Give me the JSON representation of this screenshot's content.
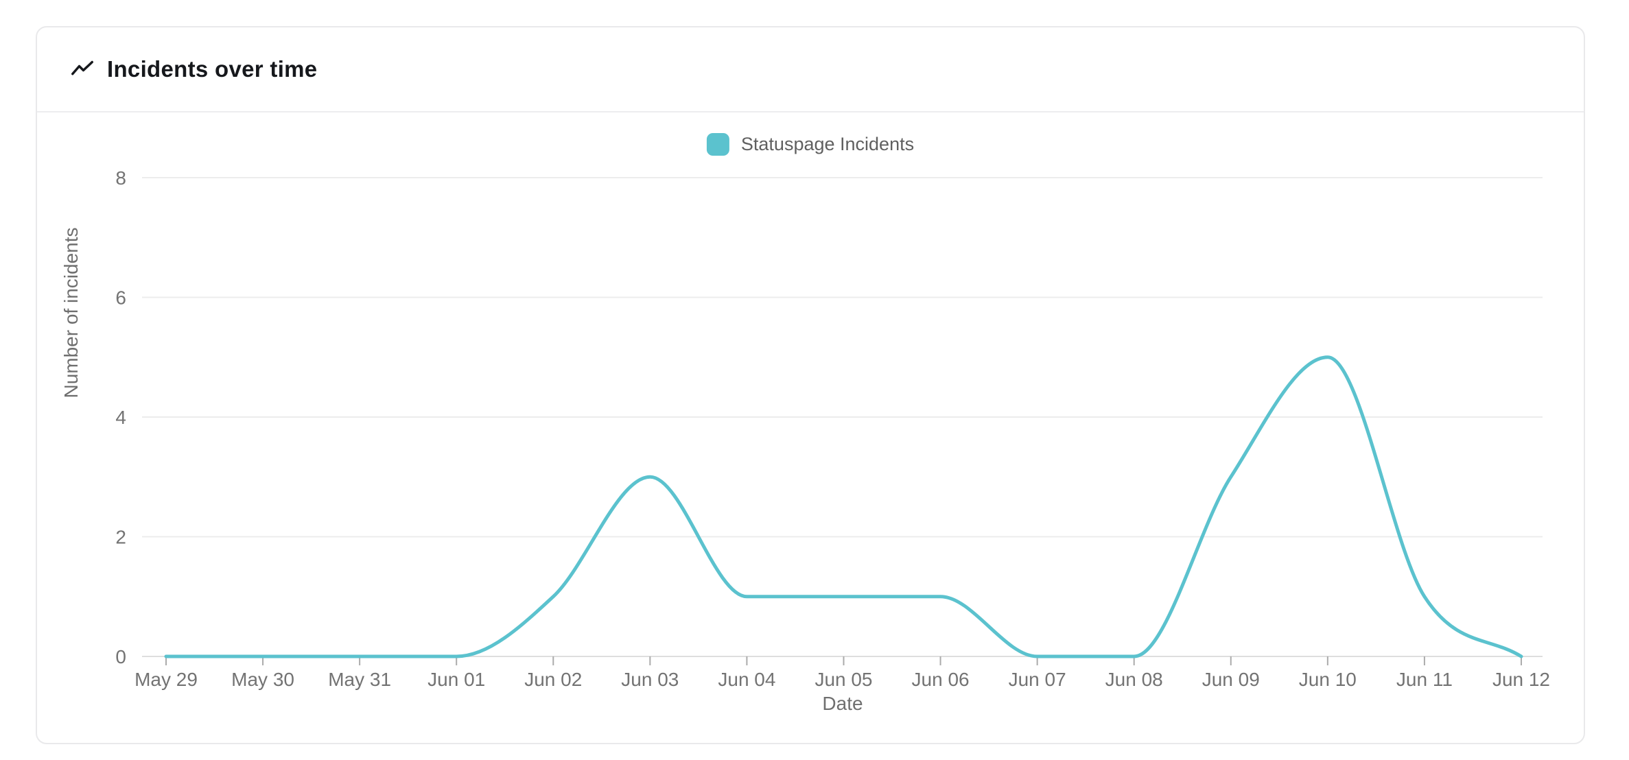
{
  "card": {
    "title": "Incidents over time"
  },
  "icons": {
    "title_icon": "trend-line"
  },
  "colors": {
    "series": "#5bc2ce",
    "gridline": "#ececec",
    "axis_line": "#dedede",
    "tick_mark": "#ababab",
    "axis_text": "#737373",
    "axis_title_text": "#6f6f6f",
    "legend_text": "#606060",
    "title_text": "#16181c",
    "card_border": "#e9e9eb"
  },
  "chart_data": {
    "type": "line",
    "title": "Incidents over time",
    "x": [
      "May 29",
      "May 30",
      "May 31",
      "Jun 01",
      "Jun 02",
      "Jun 03",
      "Jun 04",
      "Jun 05",
      "Jun 06",
      "Jun 07",
      "Jun 08",
      "Jun 09",
      "Jun 10",
      "Jun 11",
      "Jun 12"
    ],
    "series": [
      {
        "name": "Statuspage Incidents",
        "values": [
          0,
          0,
          0,
          0,
          1,
          3,
          1,
          1,
          1,
          0,
          0,
          3,
          5,
          1,
          0
        ],
        "color": "#5bc2ce"
      }
    ],
    "xlabel": "Date",
    "ylabel": "Number of incidents",
    "ylim": [
      0,
      8
    ],
    "yticks": [
      0,
      2,
      4,
      6,
      8
    ],
    "grid": true,
    "legend_position": "top-center",
    "smooth": true
  }
}
